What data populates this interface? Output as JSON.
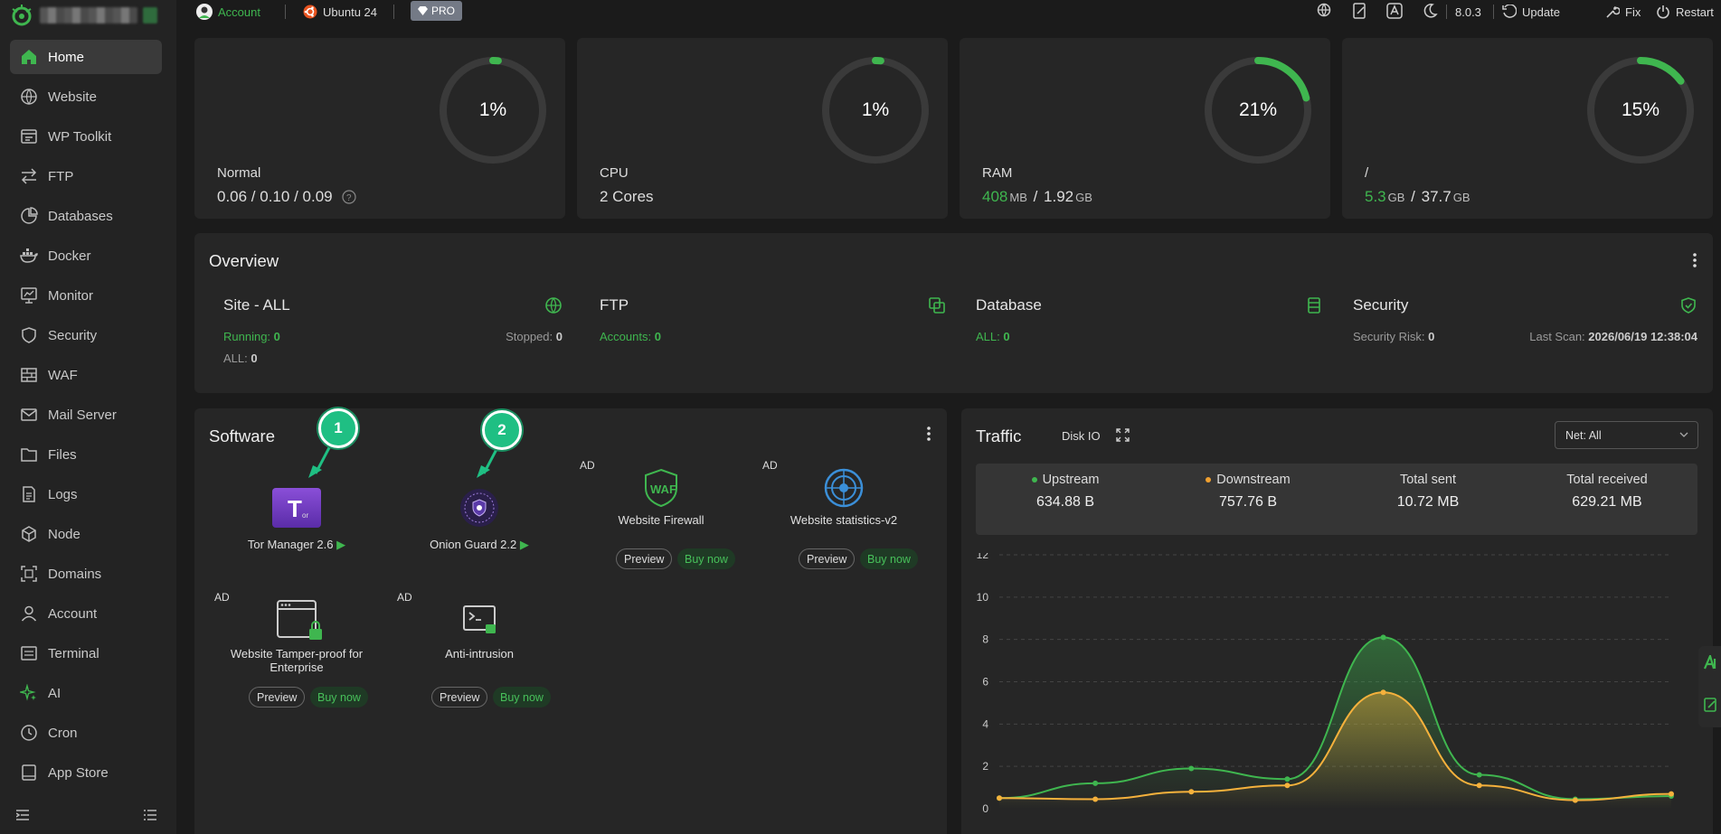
{
  "sidebar": {
    "items": [
      {
        "label": "Home",
        "icon": "home-icon",
        "active": true
      },
      {
        "label": "Website",
        "icon": "globe-icon"
      },
      {
        "label": "WP Toolkit",
        "icon": "wordpress-icon"
      },
      {
        "label": "FTP",
        "icon": "transfer-icon"
      },
      {
        "label": "Databases",
        "icon": "database-pie-icon"
      },
      {
        "label": "Docker",
        "icon": "docker-icon"
      },
      {
        "label": "Monitor",
        "icon": "monitor-icon"
      },
      {
        "label": "Security",
        "icon": "shield-icon"
      },
      {
        "label": "WAF",
        "icon": "firewall-icon"
      },
      {
        "label": "Mail Server",
        "icon": "mail-icon"
      },
      {
        "label": "Files",
        "icon": "folder-icon"
      },
      {
        "label": "Logs",
        "icon": "log-icon"
      },
      {
        "label": "Node",
        "icon": "node-cube-icon"
      },
      {
        "label": "Domains",
        "icon": "domains-icon"
      },
      {
        "label": "Account",
        "icon": "user-icon"
      },
      {
        "label": "Terminal",
        "icon": "terminal-icon"
      },
      {
        "label": "AI",
        "icon": "sparkle-icon"
      },
      {
        "label": "Cron",
        "icon": "clock-icon"
      },
      {
        "label": "App Store",
        "icon": "app-store-icon"
      }
    ]
  },
  "topbar": {
    "account": "Account",
    "os": "Ubuntu 24",
    "pro": "PRO",
    "version": "8.0.3",
    "update": "Update",
    "fix": "Fix",
    "restart": "Restart"
  },
  "gauges": [
    {
      "title": "Normal",
      "value": "0.06 / 0.10 / 0.09",
      "percent_label": "1%",
      "percent": 1
    },
    {
      "title": "CPU",
      "value": "2 Cores",
      "percent_label": "1%",
      "percent": 1
    },
    {
      "title": "RAM",
      "used": "408",
      "used_unit": "MB",
      "sep": " / ",
      "total": "1.92",
      "total_unit": "GB",
      "percent_label": "21%",
      "percent": 21
    },
    {
      "title": "/",
      "used": "5.3",
      "used_unit": "GB",
      "sep": " / ",
      "total": "37.7",
      "total_unit": "GB",
      "percent_label": "15%",
      "percent": 15
    }
  ],
  "overview": {
    "title": "Overview",
    "site": {
      "title": "Site - ALL",
      "running_label": "Running: ",
      "running": "0",
      "stopped_label": "Stopped: ",
      "stopped": "0",
      "all_label": "ALL: ",
      "all": "0"
    },
    "ftp": {
      "title": "FTP",
      "accounts_label": "Accounts: ",
      "accounts": "0"
    },
    "database": {
      "title": "Database",
      "all_label": "ALL: ",
      "all": "0"
    },
    "security": {
      "title": "Security",
      "risk_label": "Security Risk: ",
      "risk": "0",
      "scan_label": "Last Scan: ",
      "scan": "2026/06/19 12:38:04"
    }
  },
  "software": {
    "title": "Software",
    "ad": "AD",
    "preview": "Preview",
    "buy": "Buy now",
    "items": [
      {
        "name": "Tor Manager 2.6",
        "badge": "1"
      },
      {
        "name": "Onion Guard 2.2",
        "badge": "2"
      },
      {
        "name": "Website Firewall"
      },
      {
        "name": "Website statistics-v2"
      },
      {
        "name": "Website Tamper-proof for Enterprise"
      },
      {
        "name": "Anti-intrusion"
      }
    ]
  },
  "traffic": {
    "title": "Traffic",
    "tab_disk": "Disk IO",
    "select": "Net: All",
    "stats": [
      {
        "label": "Upstream",
        "value": "634.88 B",
        "color": "#3fb64f"
      },
      {
        "label": "Downstream",
        "value": "757.76 B",
        "color": "#f0a030"
      },
      {
        "label": "Total sent",
        "value": "10.72 MB"
      },
      {
        "label": "Total received",
        "value": "629.21 MB"
      }
    ]
  },
  "chart_data": {
    "type": "line",
    "y_ticks": [
      "0",
      "2",
      "4",
      "6",
      "8",
      "10",
      "12"
    ],
    "ylim": [
      0,
      12
    ],
    "x": [
      0,
      1,
      2,
      3,
      4,
      5,
      6,
      7
    ],
    "series": [
      {
        "values": [
          0.5,
          1.2,
          1.9,
          1.4,
          8.1,
          1.6,
          0.45,
          0.6
        ],
        "color": "#3fb64f"
      },
      {
        "values": [
          0.5,
          0.45,
          0.8,
          1.1,
          5.5,
          1.1,
          0.4,
          0.7
        ],
        "color": "#f5b13c"
      }
    ],
    "grid": true
  }
}
